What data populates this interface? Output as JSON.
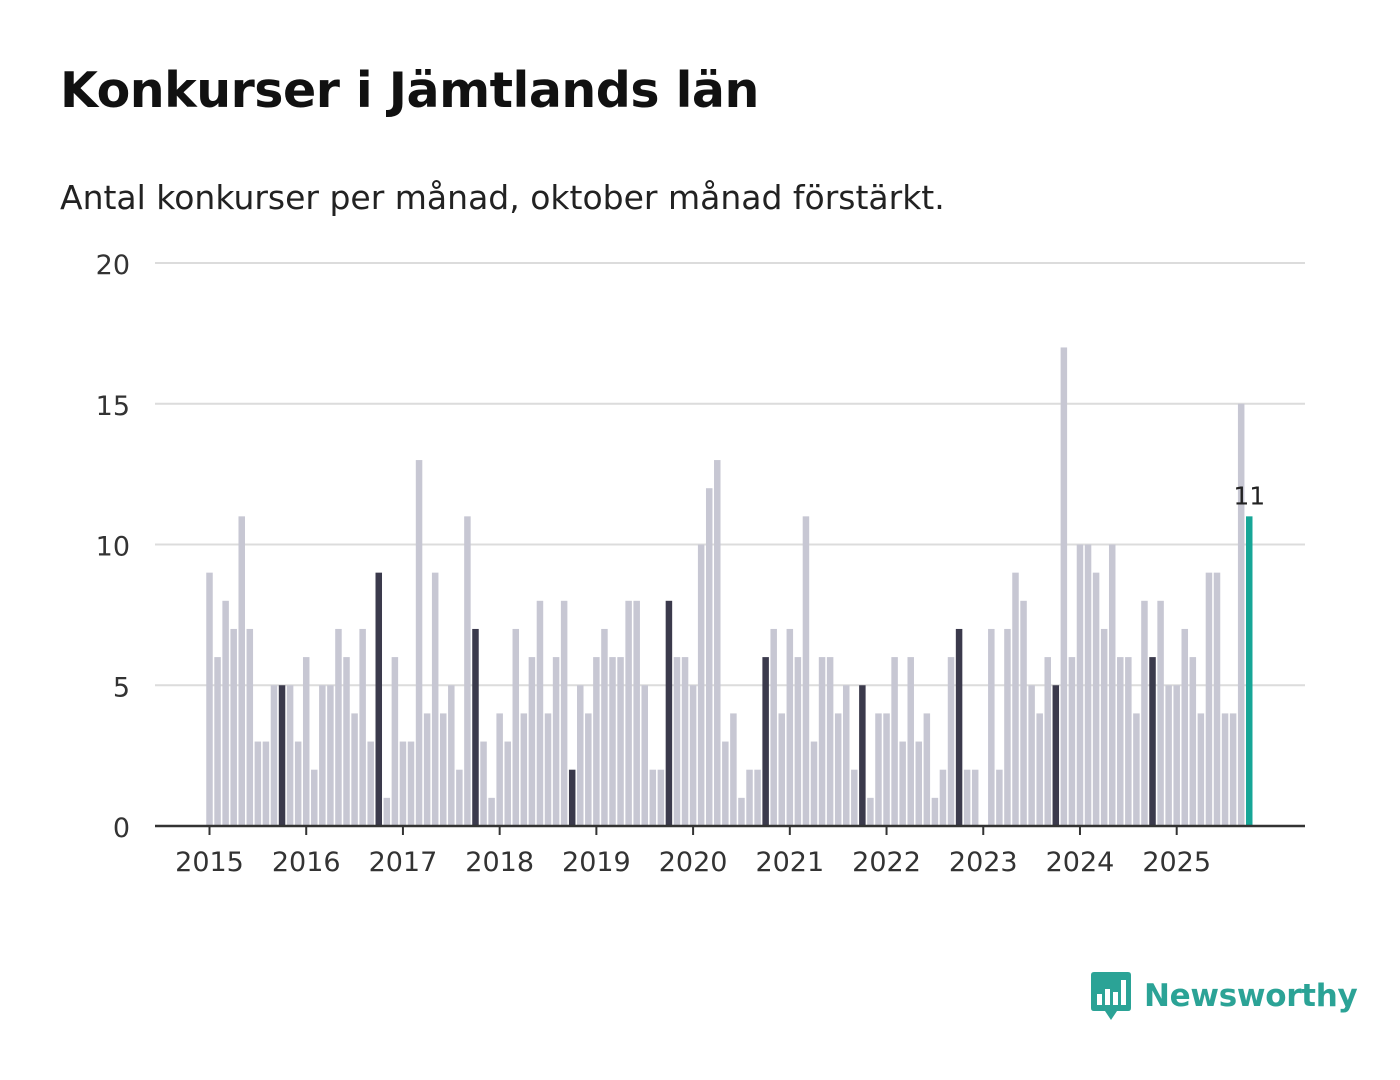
{
  "header": {
    "title": "Konkurser i Jämtlands län",
    "subtitle": "Antal konkurser per månad, oktober månad förstärkt."
  },
  "brand": {
    "name": "Newsworthy",
    "logo_icon": "bar-chart-speech-bubble-icon",
    "color": "#2ba396"
  },
  "colors": {
    "bar_default": "#c7c7d3",
    "bar_october": "#3b3a4c",
    "bar_latest": "#17a697",
    "grid": "#dcdcdc",
    "axis": "#333333",
    "label": "#333333"
  },
  "chart_data": {
    "type": "bar",
    "title": "Konkurser i Jämtlands län",
    "subtitle": "Antal konkurser per månad, oktober månad förstärkt.",
    "xlabel": "",
    "ylabel": "",
    "ylim": [
      0,
      20
    ],
    "yticks": [
      0,
      5,
      10,
      15,
      20
    ],
    "grid": true,
    "x_start": "2015-01",
    "x_end": "2025-10",
    "highlight_month": "oktober",
    "xtick_labels": [
      "2015",
      "2016",
      "2017",
      "2018",
      "2019",
      "2020",
      "2021",
      "2022",
      "2023",
      "2024",
      "2025"
    ],
    "series": [
      {
        "name": "Antal konkurser",
        "values": [
          9,
          6,
          8,
          7,
          11,
          7,
          3,
          3,
          5,
          5,
          5,
          3,
          6,
          2,
          5,
          5,
          7,
          6,
          4,
          7,
          3,
          9,
          1,
          6,
          3,
          3,
          13,
          4,
          9,
          4,
          5,
          2,
          11,
          7,
          3,
          1,
          4,
          3,
          7,
          4,
          6,
          8,
          4,
          6,
          8,
          2,
          5,
          4,
          6,
          7,
          6,
          6,
          8,
          8,
          5,
          2,
          2,
          8,
          6,
          6,
          5,
          10,
          12,
          13,
          3,
          4,
          1,
          2,
          2,
          6,
          7,
          4,
          7,
          6,
          11,
          3,
          6,
          6,
          4,
          5,
          2,
          5,
          1,
          4,
          4,
          6,
          3,
          6,
          3,
          4,
          1,
          2,
          6,
          7,
          2,
          2,
          0,
          7,
          2,
          7,
          9,
          8,
          5,
          4,
          6,
          5,
          17,
          6,
          10,
          10,
          9,
          7,
          10,
          6,
          6,
          4,
          8,
          6,
          8,
          5,
          5,
          7,
          6,
          4,
          9,
          9,
          4,
          4,
          15,
          11
        ]
      }
    ],
    "annotations": [
      {
        "text": "11",
        "target": "2025-10"
      }
    ]
  }
}
